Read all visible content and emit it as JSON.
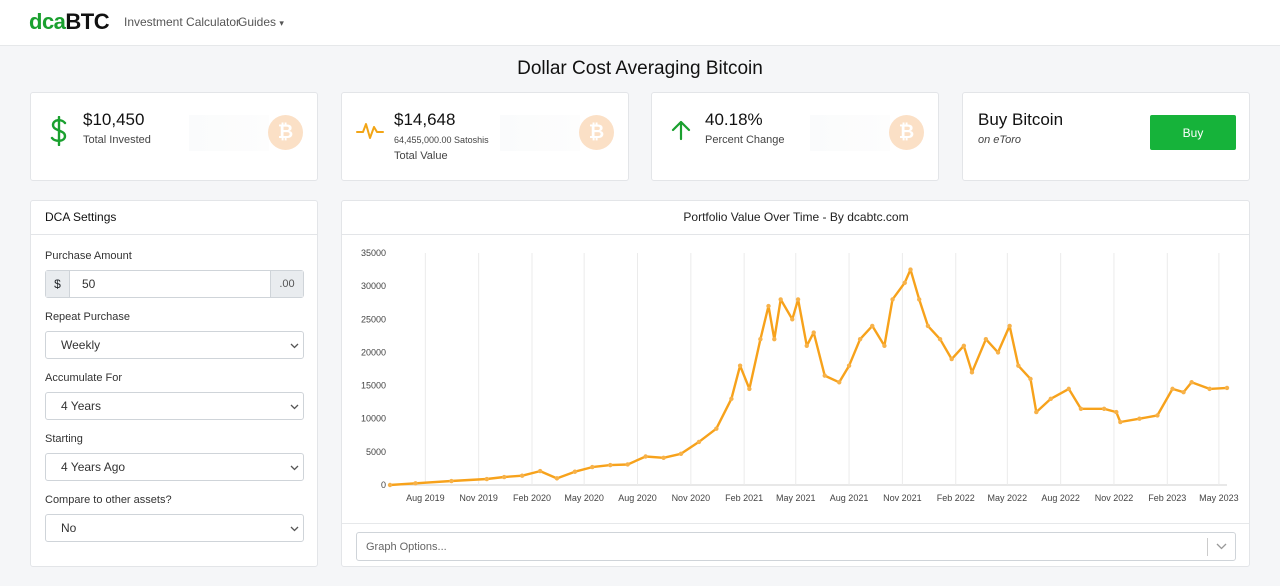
{
  "nav": {
    "logo_green": "dca",
    "logo_dark": "BTC",
    "links": [
      "Investment Calculator",
      "Guides"
    ]
  },
  "page_title": "Dollar Cost Averaging Bitcoin",
  "stats": {
    "invested": {
      "value": "$10,450",
      "label": "Total Invested",
      "icon": "dollar-icon"
    },
    "total": {
      "value": "$14,648",
      "sub": "64,455,000.00 Satoshis",
      "label": "Total Value",
      "icon": "pulse-icon"
    },
    "change": {
      "value": "40.18%",
      "label": "Percent Change",
      "icon": "arrow-up-icon"
    },
    "buy": {
      "title": "Buy Bitcoin",
      "sub": "on eToro",
      "button": "Buy"
    },
    "btc_symbol": "₿"
  },
  "settings": {
    "title": "DCA Settings",
    "amount_label": "Purchase Amount",
    "amount_prefix": "$",
    "amount_value": "50",
    "amount_suffix": ".00",
    "repeat_label": "Repeat Purchase",
    "repeat_value": "Weekly",
    "accumulate_label": "Accumulate For",
    "accumulate_value": "4 Years",
    "starting_label": "Starting",
    "starting_value": "4 Years Ago",
    "compare_label": "Compare to other assets?",
    "compare_value": "No"
  },
  "graph_options": "Graph Options...",
  "colors": {
    "accent": "#1aa02f",
    "buy": "#16b33a",
    "line": "#f7a21b",
    "btc_badge": "#fbe0c6"
  },
  "chart_data": {
    "type": "line",
    "title": "Portfolio Value Over Time - By dcabtc.com",
    "ylim": [
      0,
      35000
    ],
    "yticks": [
      0,
      5000,
      10000,
      15000,
      20000,
      25000,
      30000,
      35000
    ],
    "xlim": [
      "2019-06-01",
      "2023-05-15"
    ],
    "xticks": [
      "Aug 2019",
      "Nov 2019",
      "Feb 2020",
      "May 2020",
      "Aug 2020",
      "Nov 2020",
      "Feb 2021",
      "May 2021",
      "Aug 2021",
      "Nov 2021",
      "Feb 2022",
      "May 2022",
      "Aug 2022",
      "Nov 2022",
      "Feb 2023",
      "May 2023"
    ],
    "series": [
      {
        "values": [
          [
            "2019-06-01",
            0
          ],
          [
            "2019-07-15",
            250
          ],
          [
            "2019-09-15",
            600
          ],
          [
            "2019-11-15",
            900
          ],
          [
            "2019-12-15",
            1200
          ],
          [
            "2020-01-15",
            1400
          ],
          [
            "2020-02-15",
            2100
          ],
          [
            "2020-03-15",
            1000
          ],
          [
            "2020-04-15",
            2000
          ],
          [
            "2020-05-15",
            2700
          ],
          [
            "2020-06-15",
            3000
          ],
          [
            "2020-07-15",
            3100
          ],
          [
            "2020-08-15",
            4300
          ],
          [
            "2020-09-15",
            4100
          ],
          [
            "2020-10-15",
            4700
          ],
          [
            "2020-11-15",
            6500
          ],
          [
            "2020-12-15",
            8500
          ],
          [
            "2021-01-10",
            13000
          ],
          [
            "2021-01-25",
            18000
          ],
          [
            "2021-02-10",
            14500
          ],
          [
            "2021-03-01",
            22000
          ],
          [
            "2021-03-15",
            27000
          ],
          [
            "2021-03-25",
            22000
          ],
          [
            "2021-04-05",
            28000
          ],
          [
            "2021-04-25",
            25000
          ],
          [
            "2021-05-05",
            28000
          ],
          [
            "2021-05-20",
            21000
          ],
          [
            "2021-06-01",
            23000
          ],
          [
            "2021-06-20",
            16500
          ],
          [
            "2021-07-15",
            15500
          ],
          [
            "2021-08-01",
            18000
          ],
          [
            "2021-08-20",
            22000
          ],
          [
            "2021-09-10",
            24000
          ],
          [
            "2021-10-01",
            21000
          ],
          [
            "2021-10-15",
            28000
          ],
          [
            "2021-11-05",
            30500
          ],
          [
            "2021-11-15",
            32500
          ],
          [
            "2021-11-30",
            28000
          ],
          [
            "2021-12-15",
            24000
          ],
          [
            "2022-01-05",
            22000
          ],
          [
            "2022-01-25",
            19000
          ],
          [
            "2022-02-15",
            21000
          ],
          [
            "2022-03-01",
            17000
          ],
          [
            "2022-03-25",
            22000
          ],
          [
            "2022-04-15",
            20000
          ],
          [
            "2022-05-05",
            24000
          ],
          [
            "2022-05-20",
            18000
          ],
          [
            "2022-06-10",
            16000
          ],
          [
            "2022-06-20",
            11000
          ],
          [
            "2022-07-15",
            13000
          ],
          [
            "2022-08-15",
            14500
          ],
          [
            "2022-09-05",
            11500
          ],
          [
            "2022-10-15",
            11500
          ],
          [
            "2022-11-05",
            11000
          ],
          [
            "2022-11-12",
            9500
          ],
          [
            "2022-12-15",
            10000
          ],
          [
            "2023-01-15",
            10500
          ],
          [
            "2023-02-10",
            14500
          ],
          [
            "2023-03-01",
            14000
          ],
          [
            "2023-03-15",
            15500
          ],
          [
            "2023-04-15",
            14500
          ],
          [
            "2023-05-15",
            14648
          ]
        ]
      }
    ]
  }
}
